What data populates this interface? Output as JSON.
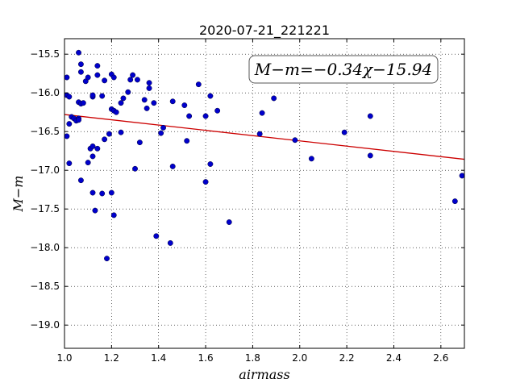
{
  "chart_data": {
    "type": "scatter",
    "title": "2020-07-21_221221",
    "xlabel": "airmass",
    "ylabel": "M−m",
    "xlim": [
      1.0,
      2.7
    ],
    "ylim": [
      -19.3,
      -15.3
    ],
    "xticks": [
      1.0,
      1.2,
      1.4,
      1.6,
      1.8,
      2.0,
      2.2,
      2.4,
      2.6
    ],
    "xtick_labels": [
      "1.0",
      "1.2",
      "1.4",
      "1.6",
      "1.8",
      "2.0",
      "2.2",
      "2.4",
      "2.6"
    ],
    "yticks": [
      -15.5,
      -16.0,
      -16.5,
      -17.0,
      -17.5,
      -18.0,
      -18.5,
      -19.0
    ],
    "ytick_labels": [
      "−15.5",
      "−16.0",
      "−16.5",
      "−17.0",
      "−17.5",
      "−18.0",
      "−18.5",
      "−19.0"
    ],
    "grid": true,
    "annotation": "M−m=−0.34χ−15.94",
    "point_color": "#0000cc",
    "fit_color": "#cc0000",
    "fit": {
      "slope": -0.34,
      "intercept": -15.94
    },
    "series": [
      {
        "points": [
          [
            1.01,
            -15.8
          ],
          [
            1.01,
            -16.03
          ],
          [
            1.02,
            -16.05
          ],
          [
            1.01,
            -16.56
          ],
          [
            1.02,
            -16.91
          ],
          [
            1.02,
            -16.4
          ],
          [
            1.03,
            -16.31
          ],
          [
            1.04,
            -16.33
          ],
          [
            1.05,
            -16.36
          ],
          [
            1.06,
            -16.33
          ],
          [
            1.06,
            -16.35
          ],
          [
            1.06,
            -15.48
          ],
          [
            1.07,
            -15.73
          ],
          [
            1.07,
            -15.63
          ],
          [
            1.06,
            -16.12
          ],
          [
            1.07,
            -16.14
          ],
          [
            1.08,
            -16.13
          ],
          [
            1.09,
            -15.85
          ],
          [
            1.1,
            -15.8
          ],
          [
            1.07,
            -17.13
          ],
          [
            1.1,
            -16.9
          ],
          [
            1.11,
            -16.72
          ],
          [
            1.12,
            -16.69
          ],
          [
            1.12,
            -16.82
          ],
          [
            1.12,
            -16.05
          ],
          [
            1.12,
            -16.03
          ],
          [
            1.12,
            -17.29
          ],
          [
            1.13,
            -17.52
          ],
          [
            1.14,
            -15.65
          ],
          [
            1.14,
            -15.77
          ],
          [
            1.14,
            -16.72
          ],
          [
            1.16,
            -17.3
          ],
          [
            1.16,
            -16.04
          ],
          [
            1.17,
            -15.84
          ],
          [
            1.17,
            -16.6
          ],
          [
            1.18,
            -18.14
          ],
          [
            1.19,
            -16.53
          ],
          [
            1.2,
            -15.76
          ],
          [
            1.2,
            -16.21
          ],
          [
            1.21,
            -15.8
          ],
          [
            1.21,
            -16.23
          ],
          [
            1.21,
            -17.58
          ],
          [
            1.2,
            -17.29
          ],
          [
            1.22,
            -16.25
          ],
          [
            1.24,
            -16.51
          ],
          [
            1.24,
            -16.13
          ],
          [
            1.25,
            -16.07
          ],
          [
            1.27,
            -15.99
          ],
          [
            1.28,
            -15.83
          ],
          [
            1.29,
            -15.77
          ],
          [
            1.31,
            -15.83
          ],
          [
            1.3,
            -16.98
          ],
          [
            1.32,
            -16.64
          ],
          [
            1.34,
            -16.09
          ],
          [
            1.35,
            -16.2
          ],
          [
            1.36,
            -15.87
          ],
          [
            1.36,
            -15.94
          ],
          [
            1.38,
            -16.13
          ],
          [
            1.39,
            -17.85
          ],
          [
            1.41,
            -16.52
          ],
          [
            1.42,
            -16.45
          ],
          [
            1.45,
            -17.94
          ],
          [
            1.46,
            -16.95
          ],
          [
            1.46,
            -16.11
          ],
          [
            1.51,
            -16.16
          ],
          [
            1.52,
            -16.62
          ],
          [
            1.53,
            -16.3
          ],
          [
            1.57,
            -15.89
          ],
          [
            1.6,
            -16.3
          ],
          [
            1.6,
            -17.15
          ],
          [
            1.62,
            -16.04
          ],
          [
            1.62,
            -16.92
          ],
          [
            1.65,
            -16.23
          ],
          [
            1.7,
            -17.67
          ],
          [
            1.83,
            -16.53
          ],
          [
            1.84,
            -16.26
          ],
          [
            1.89,
            -16.07
          ],
          [
            1.98,
            -16.61
          ],
          [
            2.05,
            -16.85
          ],
          [
            2.19,
            -16.51
          ],
          [
            2.3,
            -16.3
          ],
          [
            2.3,
            -16.81
          ],
          [
            2.66,
            -17.4
          ],
          [
            2.69,
            -17.07
          ]
        ]
      }
    ]
  }
}
